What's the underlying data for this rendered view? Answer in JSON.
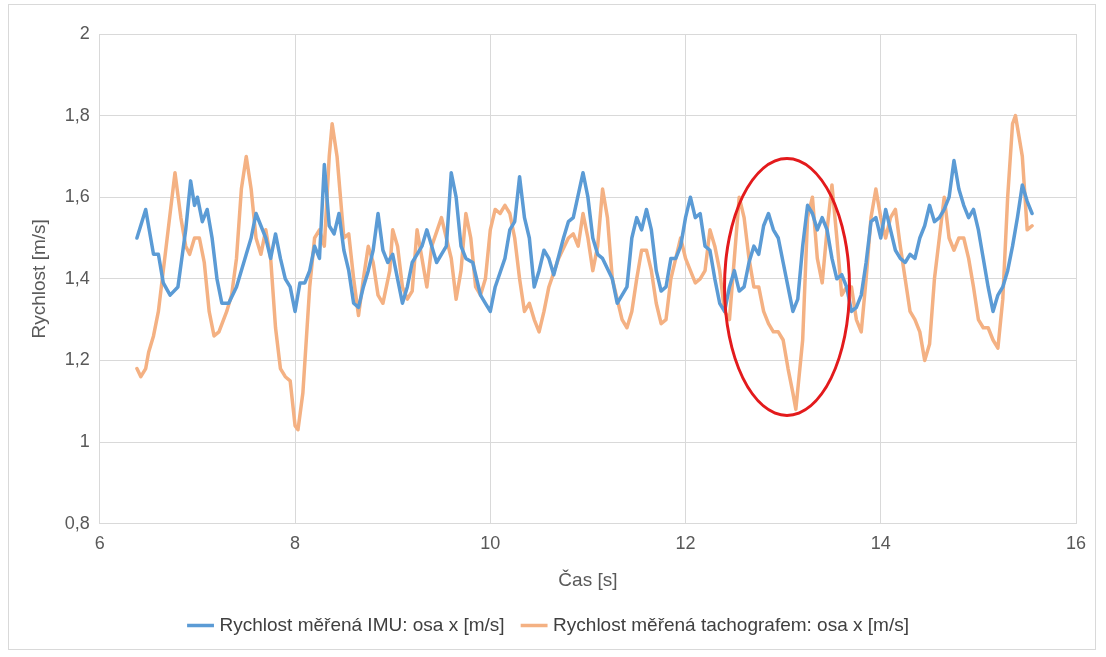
{
  "chart_data": {
    "type": "line",
    "xlabel": "Čas [s]",
    "ylabel": "Rychlost [m/s]",
    "xlim": [
      6,
      16
    ],
    "xticks": [
      6,
      8,
      10,
      12,
      14,
      16
    ],
    "ylim": [
      0.8,
      2
    ],
    "yticks": [
      {
        "value": 0.8,
        "label": "0,8"
      },
      1,
      {
        "value": 1.2,
        "label": "1,2"
      },
      {
        "value": 1.4,
        "label": "1,4"
      },
      {
        "value": 1.6,
        "label": "1,6"
      },
      {
        "value": 1.8,
        "label": "1,8"
      },
      2
    ],
    "grid": true,
    "legend": "bottom",
    "marker": "none",
    "line_style": "solid",
    "series": [
      {
        "name": "Rychlost měřená IMU: osa x [m/s]",
        "color": "#5b9bd5",
        "x": [
          6.38,
          6.47,
          6.55,
          6.6,
          6.65,
          6.72,
          6.8,
          6.88,
          6.93,
          6.97,
          7.0,
          7.05,
          7.1,
          7.15,
          7.2,
          7.25,
          7.32,
          7.4,
          7.5,
          7.55,
          7.6,
          7.65,
          7.7,
          7.75,
          7.8,
          7.85,
          7.9,
          7.95,
          8.0,
          8.05,
          8.1,
          8.15,
          8.2,
          8.25,
          8.3,
          8.35,
          8.4,
          8.45,
          8.5,
          8.55,
          8.6,
          8.65,
          8.7,
          8.75,
          8.8,
          8.85,
          8.9,
          8.95,
          9.0,
          9.05,
          9.1,
          9.15,
          9.2,
          9.3,
          9.35,
          9.45,
          9.55,
          9.6,
          9.65,
          9.7,
          9.75,
          9.82,
          9.9,
          9.95,
          10.0,
          10.05,
          10.15,
          10.2,
          10.25,
          10.3,
          10.35,
          10.4,
          10.45,
          10.5,
          10.55,
          10.6,
          10.65,
          10.75,
          10.8,
          10.85,
          10.95,
          11.0,
          11.05,
          11.1,
          11.15,
          11.25,
          11.3,
          11.4,
          11.45,
          11.5,
          11.55,
          11.6,
          11.65,
          11.7,
          11.75,
          11.8,
          11.85,
          11.9,
          11.95,
          12.0,
          12.05,
          12.1,
          12.15,
          12.2,
          12.25,
          12.3,
          12.35,
          12.4,
          12.45,
          12.5,
          12.55,
          12.6,
          12.65,
          12.7,
          12.75,
          12.8,
          12.85,
          12.9,
          12.95,
          13.0,
          13.05,
          13.1,
          13.15,
          13.2,
          13.25,
          13.3,
          13.35,
          13.4,
          13.45,
          13.5,
          13.55,
          13.6,
          13.65,
          13.7,
          13.75,
          13.8,
          13.85,
          13.9,
          13.95,
          14.0,
          14.05,
          14.1,
          14.15,
          14.2,
          14.25,
          14.3,
          14.35,
          14.4,
          14.45,
          14.5,
          14.55,
          14.6,
          14.65,
          14.7,
          14.75,
          14.8,
          14.85,
          14.9,
          14.95,
          15.0,
          15.05,
          15.1,
          15.15,
          15.2,
          15.25,
          15.3,
          15.35,
          15.4,
          15.45,
          15.5,
          15.55
        ],
        "values": [
          1.5,
          1.57,
          1.46,
          1.46,
          1.39,
          1.36,
          1.38,
          1.52,
          1.64,
          1.58,
          1.6,
          1.54,
          1.57,
          1.5,
          1.4,
          1.34,
          1.34,
          1.38,
          1.46,
          1.5,
          1.56,
          1.53,
          1.5,
          1.45,
          1.51,
          1.45,
          1.4,
          1.38,
          1.32,
          1.39,
          1.39,
          1.42,
          1.48,
          1.45,
          1.68,
          1.53,
          1.51,
          1.56,
          1.47,
          1.42,
          1.34,
          1.33,
          1.38,
          1.42,
          1.47,
          1.56,
          1.47,
          1.44,
          1.46,
          1.4,
          1.34,
          1.38,
          1.44,
          1.48,
          1.52,
          1.44,
          1.48,
          1.66,
          1.6,
          1.48,
          1.45,
          1.44,
          1.36,
          1.34,
          1.32,
          1.38,
          1.45,
          1.52,
          1.54,
          1.65,
          1.55,
          1.5,
          1.38,
          1.42,
          1.47,
          1.45,
          1.41,
          1.5,
          1.54,
          1.55,
          1.66,
          1.6,
          1.5,
          1.46,
          1.45,
          1.4,
          1.34,
          1.38,
          1.5,
          1.55,
          1.52,
          1.57,
          1.52,
          1.42,
          1.37,
          1.38,
          1.45,
          1.45,
          1.48,
          1.55,
          1.6,
          1.55,
          1.56,
          1.48,
          1.47,
          1.4,
          1.34,
          1.32,
          1.38,
          1.42,
          1.37,
          1.38,
          1.44,
          1.48,
          1.46,
          1.53,
          1.56,
          1.52,
          1.5,
          1.44,
          1.38,
          1.32,
          1.35,
          1.48,
          1.58,
          1.56,
          1.52,
          1.55,
          1.52,
          1.45,
          1.4,
          1.41,
          1.38,
          1.32,
          1.33,
          1.36,
          1.44,
          1.54,
          1.55,
          1.5,
          1.57,
          1.52,
          1.47,
          1.45,
          1.44,
          1.46,
          1.45,
          1.5,
          1.53,
          1.58,
          1.54,
          1.55,
          1.57,
          1.6,
          1.69,
          1.62,
          1.58,
          1.55,
          1.57,
          1.52,
          1.45,
          1.38,
          1.32,
          1.36,
          1.38,
          1.42,
          1.48,
          1.55,
          1.63,
          1.59,
          1.56
        ]
      },
      {
        "name": "Rychlost měřená tachografem: osa x [m/s]",
        "color": "#f4b183",
        "x": [
          6.38,
          6.42,
          6.47,
          6.5,
          6.55,
          6.6,
          6.65,
          6.7,
          6.77,
          6.83,
          6.88,
          6.92,
          6.97,
          7.02,
          7.07,
          7.12,
          7.17,
          7.22,
          7.3,
          7.35,
          7.4,
          7.45,
          7.5,
          7.55,
          7.6,
          7.65,
          7.7,
          7.75,
          7.8,
          7.85,
          7.9,
          7.95,
          8.0,
          8.03,
          8.08,
          8.15,
          8.2,
          8.25,
          8.3,
          8.35,
          8.38,
          8.43,
          8.5,
          8.55,
          8.6,
          8.65,
          8.7,
          8.75,
          8.8,
          8.85,
          8.9,
          8.97,
          9.0,
          9.05,
          9.1,
          9.15,
          9.2,
          9.25,
          9.3,
          9.35,
          9.4,
          9.5,
          9.55,
          9.6,
          9.65,
          9.7,
          9.75,
          9.8,
          9.85,
          9.9,
          9.95,
          10.0,
          10.05,
          10.1,
          10.15,
          10.2,
          10.25,
          10.3,
          10.35,
          10.4,
          10.45,
          10.5,
          10.55,
          10.6,
          10.7,
          10.8,
          10.85,
          10.9,
          10.95,
          11.0,
          11.05,
          11.1,
          11.15,
          11.2,
          11.25,
          11.3,
          11.35,
          11.4,
          11.45,
          11.5,
          11.55,
          11.6,
          11.65,
          11.7,
          11.75,
          11.8,
          11.85,
          11.9,
          11.95,
          12.0,
          12.05,
          12.1,
          12.15,
          12.2,
          12.25,
          12.3,
          12.35,
          12.4,
          12.45,
          12.5,
          12.55,
          12.6,
          12.65,
          12.7,
          12.75,
          12.8,
          12.85,
          12.9,
          12.95,
          13.0,
          13.05,
          13.1,
          13.13,
          13.2,
          13.25,
          13.3,
          13.35,
          13.4,
          13.45,
          13.5,
          13.55,
          13.6,
          13.65,
          13.7,
          13.75,
          13.8,
          13.85,
          13.9,
          13.95,
          14.0,
          14.05,
          14.1,
          14.15,
          14.2,
          14.3,
          14.35,
          14.4,
          14.45,
          14.5,
          14.55,
          14.6,
          14.65,
          14.7,
          14.75,
          14.8,
          14.85,
          14.9,
          14.95,
          15.0,
          15.05,
          15.1,
          15.15,
          15.2,
          15.25,
          15.3,
          15.35,
          15.38,
          15.45,
          15.5,
          15.55
        ],
        "values": [
          1.18,
          1.16,
          1.18,
          1.22,
          1.26,
          1.32,
          1.42,
          1.52,
          1.66,
          1.55,
          1.48,
          1.46,
          1.5,
          1.5,
          1.44,
          1.32,
          1.26,
          1.27,
          1.32,
          1.36,
          1.45,
          1.62,
          1.7,
          1.62,
          1.5,
          1.46,
          1.52,
          1.45,
          1.28,
          1.18,
          1.16,
          1.15,
          1.04,
          1.03,
          1.12,
          1.38,
          1.5,
          1.52,
          1.48,
          1.7,
          1.78,
          1.7,
          1.5,
          1.51,
          1.4,
          1.31,
          1.4,
          1.48,
          1.44,
          1.36,
          1.34,
          1.42,
          1.52,
          1.48,
          1.38,
          1.35,
          1.37,
          1.52,
          1.45,
          1.38,
          1.48,
          1.55,
          1.5,
          1.45,
          1.35,
          1.42,
          1.56,
          1.5,
          1.38,
          1.36,
          1.4,
          1.52,
          1.57,
          1.56,
          1.58,
          1.56,
          1.5,
          1.4,
          1.32,
          1.34,
          1.3,
          1.27,
          1.32,
          1.38,
          1.45,
          1.5,
          1.51,
          1.48,
          1.56,
          1.5,
          1.42,
          1.48,
          1.62,
          1.55,
          1.4,
          1.35,
          1.3,
          1.28,
          1.32,
          1.4,
          1.47,
          1.47,
          1.42,
          1.34,
          1.29,
          1.3,
          1.4,
          1.45,
          1.5,
          1.45,
          1.42,
          1.39,
          1.4,
          1.42,
          1.52,
          1.48,
          1.42,
          1.32,
          1.3,
          1.45,
          1.6,
          1.55,
          1.45,
          1.38,
          1.38,
          1.32,
          1.29,
          1.27,
          1.27,
          1.25,
          1.18,
          1.12,
          1.08,
          1.25,
          1.55,
          1.6,
          1.45,
          1.39,
          1.52,
          1.63,
          1.5,
          1.36,
          1.38,
          1.38,
          1.3,
          1.27,
          1.4,
          1.55,
          1.62,
          1.55,
          1.5,
          1.55,
          1.57,
          1.48,
          1.32,
          1.3,
          1.27,
          1.2,
          1.24,
          1.4,
          1.5,
          1.6,
          1.5,
          1.47,
          1.5,
          1.5,
          1.45,
          1.38,
          1.3,
          1.28,
          1.28,
          1.25,
          1.23,
          1.35,
          1.6,
          1.78,
          1.8,
          1.7,
          1.52,
          1.53
        ]
      }
    ]
  }
}
